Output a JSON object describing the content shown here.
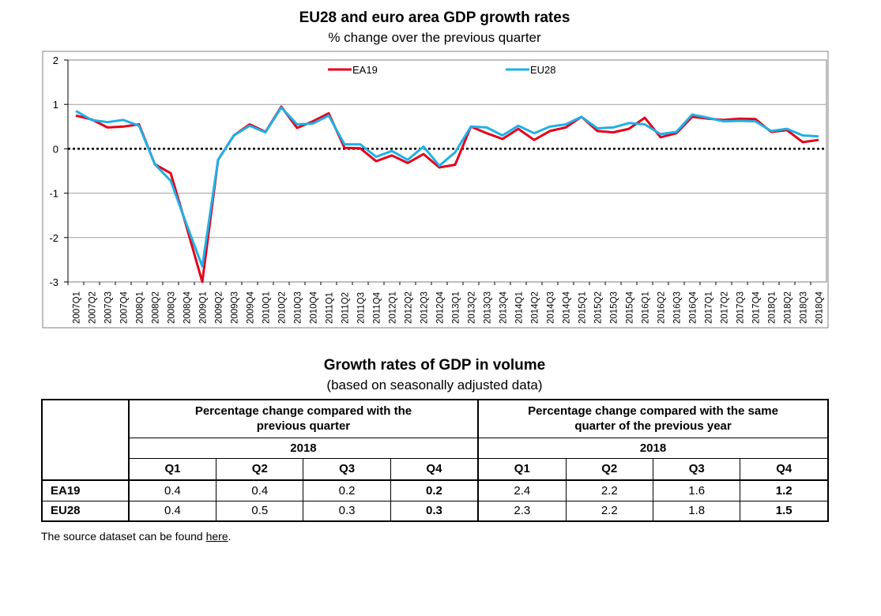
{
  "chart_data": {
    "type": "line",
    "title": "EU28 and euro area GDP growth rates",
    "subtitle": "% change over the previous quarter",
    "ylim": [
      -3,
      2
    ],
    "yticks": [
      2,
      1,
      0,
      -1,
      -2,
      -3
    ],
    "grid": true,
    "legend": "top",
    "categories": [
      "2007Q1",
      "2007Q2",
      "2007Q3",
      "2007Q4",
      "2008Q1",
      "2008Q2",
      "2008Q3",
      "2008Q4",
      "2009Q1",
      "2009Q2",
      "2009Q3",
      "2009Q4",
      "2010Q1",
      "2010Q2",
      "2010Q3",
      "2010Q4",
      "2011Q1",
      "2011Q2",
      "2011Q3",
      "2011Q4",
      "2012Q1",
      "2012Q2",
      "2012Q3",
      "2012Q4",
      "2013Q1",
      "2013Q2",
      "2013Q3",
      "2013Q4",
      "2014Q1",
      "2014Q2",
      "2014Q3",
      "2014Q4",
      "2015Q1",
      "2015Q2",
      "2015Q3",
      "2015Q4",
      "2016Q1",
      "2016Q2",
      "2016Q3",
      "2016Q4",
      "2017Q1",
      "2017Q2",
      "2017Q3",
      "2017Q4",
      "2018Q1",
      "2018Q2",
      "2018Q3",
      "2018Q4"
    ],
    "series": [
      {
        "name": "EA19",
        "color": "#e4001b",
        "values": [
          0.75,
          0.66,
          0.48,
          0.5,
          0.55,
          -0.35,
          -0.55,
          -1.75,
          -3.0,
          -0.25,
          0.3,
          0.55,
          0.38,
          0.95,
          0.47,
          0.62,
          0.8,
          0.02,
          0.01,
          -0.28,
          -0.15,
          -0.32,
          -0.12,
          -0.42,
          -0.36,
          0.5,
          0.35,
          0.22,
          0.45,
          0.2,
          0.4,
          0.48,
          0.72,
          0.4,
          0.37,
          0.45,
          0.7,
          0.26,
          0.35,
          0.72,
          0.68,
          0.65,
          0.68,
          0.67,
          0.38,
          0.42,
          0.15,
          0.2
        ]
      },
      {
        "name": "EU28",
        "color": "#1fb0e6",
        "values": [
          0.85,
          0.65,
          0.6,
          0.65,
          0.52,
          -0.35,
          -0.72,
          -1.7,
          -2.65,
          -0.25,
          0.3,
          0.52,
          0.37,
          0.93,
          0.55,
          0.57,
          0.75,
          0.1,
          0.1,
          -0.18,
          -0.05,
          -0.25,
          0.05,
          -0.38,
          -0.08,
          0.5,
          0.48,
          0.3,
          0.52,
          0.35,
          0.5,
          0.55,
          0.72,
          0.46,
          0.48,
          0.58,
          0.55,
          0.33,
          0.38,
          0.77,
          0.7,
          0.62,
          0.63,
          0.62,
          0.4,
          0.45,
          0.3,
          0.28
        ]
      }
    ]
  },
  "table": {
    "title": "Growth rates of GDP in volume",
    "subtitle": "(based on seasonally adjusted data)",
    "group1": "Percentage change compared with the previous quarter",
    "group2": "Percentage change compared with the same quarter of the previous year",
    "year1": "2018",
    "year2": "2018",
    "quarters": [
      "Q1",
      "Q2",
      "Q3",
      "Q4"
    ],
    "rows": [
      {
        "label": "EA19",
        "qoq": [
          "0.4",
          "0.4",
          "0.2",
          "0.2"
        ],
        "yoy": [
          "2.4",
          "2.2",
          "1.6",
          "1.2"
        ]
      },
      {
        "label": "EU28",
        "qoq": [
          "0.4",
          "0.5",
          "0.3",
          "0.3"
        ],
        "yoy": [
          "2.3",
          "2.2",
          "1.8",
          "1.5"
        ]
      }
    ]
  },
  "footer": {
    "source_text": "The source dataset can be found ",
    "source_link": "here",
    "source_end": "."
  }
}
